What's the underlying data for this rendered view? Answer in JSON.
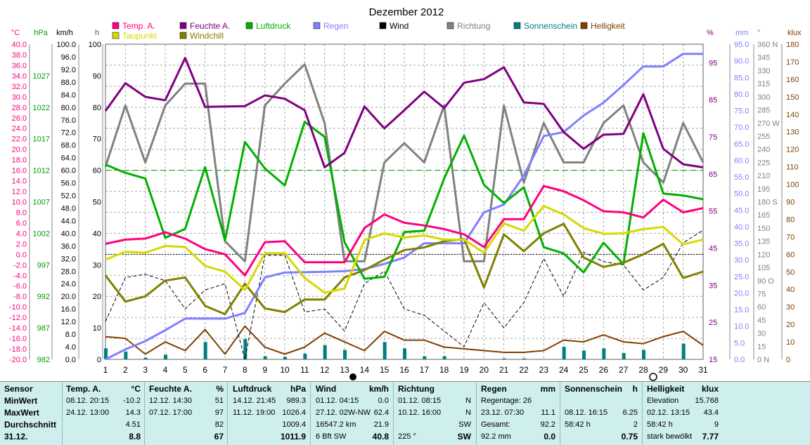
{
  "title": "Dezember 2012",
  "legend": [
    {
      "label": "Temp. A.",
      "color": "#ff0080"
    },
    {
      "label": "Taupunkt",
      "color": "#d8d800"
    },
    {
      "label": "Feuchte A.",
      "color": "#800080"
    },
    {
      "label": "Windchill",
      "color": "#808000"
    },
    {
      "label": "Luftdruck",
      "color": "#00b000"
    },
    {
      "label": "Regen",
      "color": "#8080ff"
    },
    {
      "label": "Wind",
      "color": "#000000"
    },
    {
      "label": "Richtung",
      "color": "#808080"
    },
    {
      "label": "Sonnenschein",
      "color": "#008080"
    },
    {
      "label": "Helligkeit",
      "color": "#804000"
    }
  ],
  "axes": {
    "temp": {
      "unit": "°C",
      "ticks": [
        "40.0",
        "38.0",
        "36.0",
        "34.0",
        "32.0",
        "30.0",
        "28.0",
        "26.0",
        "24.0",
        "22.0",
        "20.0",
        "18.0",
        "16.0",
        "14.0",
        "12.0",
        "10.0",
        "8.0",
        "6.0",
        "4.0",
        "2.0",
        "0.0",
        "-2.0",
        "-4.0",
        "-6.0",
        "-8.0",
        "-10.0",
        "-12.0",
        "-14.0",
        "-16.0",
        "-18.0",
        "-20.0"
      ]
    },
    "pressure": {
      "unit": "hPa",
      "ticks": [
        "1027",
        "1022",
        "1017",
        "1012",
        "1007",
        "1002",
        "997",
        "992",
        "987",
        "982"
      ]
    },
    "wind": {
      "unit": "km/h",
      "ticks": [
        "100.0",
        "96.0",
        "92.0",
        "88.0",
        "84.0",
        "80.0",
        "76.0",
        "72.0",
        "68.0",
        "64.0",
        "60.0",
        "56.0",
        "52.0",
        "48.0",
        "44.0",
        "40.0",
        "36.0",
        "32.0",
        "28.0",
        "24.0",
        "20.0",
        "16.0",
        "12.0",
        "8.0",
        "4.0",
        "0.0"
      ]
    },
    "sun": {
      "unit": "h",
      "ticks": [
        "100",
        "90",
        "80",
        "70",
        "60",
        "50",
        "40",
        "30",
        "20",
        "10",
        "0"
      ]
    },
    "humidity": {
      "unit": "%",
      "ticks": [
        "95",
        "85",
        "75",
        "65",
        "55",
        "45",
        "35",
        "25",
        "15"
      ]
    },
    "rain": {
      "unit": "mm",
      "ticks": [
        "95.0",
        "90.0",
        "85.0",
        "80.0",
        "75.0",
        "70.0",
        "65.0",
        "60.0",
        "55.0",
        "50.0",
        "45.0",
        "40.0",
        "35.0",
        "30.0",
        "25.0",
        "20.0",
        "15.0",
        "10.0",
        "5.0",
        "0.0"
      ]
    },
    "direction": {
      "unit": "°",
      "ticks": [
        "360 N",
        "345",
        "330",
        "315",
        "300",
        "285",
        "270 W",
        "255",
        "240",
        "225",
        "210",
        "195",
        "180 S",
        "165",
        "150",
        "135",
        "120",
        "105",
        "90 O",
        "75",
        "60",
        "45",
        "30",
        "15",
        "0 N"
      ]
    },
    "light": {
      "unit": "klux",
      "ticks": [
        "180",
        "170",
        "160",
        "150",
        "140",
        "130",
        "120",
        "110",
        "100",
        "90",
        "80",
        "70",
        "60",
        "50",
        "40",
        "30",
        "20",
        "10",
        "0"
      ]
    },
    "days": [
      "1",
      "2",
      "3",
      "4",
      "5",
      "6",
      "7",
      "8",
      "9",
      "10",
      "11",
      "12",
      "13",
      "14",
      "15",
      "16",
      "17",
      "18",
      "19",
      "20",
      "21",
      "22",
      "23",
      "24",
      "25",
      "26",
      "27",
      "28",
      "29",
      "30",
      "31"
    ]
  },
  "chart_data": {
    "type": "line",
    "title": "Dezember 2012",
    "x": [
      1,
      2,
      3,
      4,
      5,
      6,
      7,
      8,
      9,
      10,
      11,
      12,
      13,
      14,
      15,
      16,
      17,
      18,
      19,
      20,
      21,
      22,
      23,
      24,
      25,
      26,
      27,
      28,
      29,
      30,
      31
    ],
    "xlim": [
      1,
      31
    ],
    "series": [
      {
        "name": "Temp. A.",
        "axis": "temp",
        "ylim": [
          -20,
          40
        ],
        "color": "#ff0080",
        "values": [
          2,
          2.8,
          3,
          4.2,
          3,
          1,
          0,
          -4,
          2.3,
          2.5,
          -1.5,
          -1.5,
          -1.5,
          5,
          7.6,
          6,
          5.5,
          4.8,
          3.8,
          1.4,
          6.7,
          6.7,
          13,
          12,
          10.3,
          8.2,
          8,
          7,
          10.4,
          8,
          8.8
        ]
      },
      {
        "name": "Taupunkt",
        "axis": "temp",
        "ylim": [
          -20,
          40
        ],
        "color": "#d8d800",
        "values": [
          -1,
          0.5,
          0.3,
          1.6,
          1.4,
          -2.2,
          -3.3,
          -6.8,
          0.2,
          0.2,
          -4.5,
          -7.3,
          -6.5,
          2.7,
          4,
          3.2,
          3.6,
          2.8,
          2.8,
          0.3,
          5.9,
          4.5,
          9.2,
          7.6,
          5,
          3.9,
          4,
          4.8,
          5.2,
          1.9,
          2.8
        ]
      },
      {
        "name": "Windchill",
        "axis": "temp",
        "ylim": [
          -20,
          40
        ],
        "color": "#808000",
        "values": [
          -4,
          -9,
          -8,
          -5,
          -4.4,
          -9.8,
          -11.4,
          -5.6,
          -10.3,
          -11,
          -8.6,
          -8.6,
          -4.4,
          -3,
          -1,
          0.8,
          1.3,
          2.5,
          2.9,
          -6.3,
          3.8,
          0.6,
          4,
          5.8,
          -0.6,
          -2.4,
          -1.6,
          0,
          2,
          -4.5,
          -3.3
        ]
      },
      {
        "name": "Feuchte A.",
        "axis": "humidity",
        "ylim": [
          15,
          100
        ],
        "color": "#800080",
        "values": [
          82,
          89.5,
          85.8,
          84.9,
          96.3,
          83.1,
          83.2,
          83.3,
          86.2,
          85.3,
          82.2,
          66.8,
          70.7,
          83.2,
          77.3,
          82.2,
          87.2,
          82.8,
          89.6,
          90.6,
          93.8,
          84.3,
          83.9,
          76.3,
          71.8,
          75.6,
          75.8,
          86.5,
          71.8,
          67.6,
          66.8
        ]
      },
      {
        "name": "Luftdruck",
        "axis": "pressure",
        "ylim": [
          982,
          1032
        ],
        "color": "#00b000",
        "values": [
          1012.9,
          1011.6,
          1010.7,
          1001.3,
          1002.7,
          1012.5,
          1000.9,
          1016.5,
          1012.3,
          1009.6,
          1019.7,
          1017.3,
          1000.6,
          994.8,
          995.1,
          1002.2,
          1002.4,
          1010.7,
          1017.5,
          1009.7,
          1006.8,
          1009.3,
          999.8,
          998.8,
          995.8,
          1000.5,
          997.1,
          1017.9,
          1008.3,
          1008,
          1007.4
        ]
      },
      {
        "name": "Regen",
        "axis": "rain",
        "ylim": [
          0,
          95
        ],
        "color": "#8080ff",
        "values": [
          0,
          3,
          5.5,
          8.8,
          12.3,
          12.3,
          12.3,
          14,
          24.7,
          26.2,
          26.3,
          26.4,
          26.6,
          27.2,
          28.8,
          30.7,
          35,
          35,
          35,
          44.3,
          46.7,
          55.4,
          67.3,
          68.5,
          73.5,
          77.4,
          82.7,
          88.3,
          88.3,
          92.1,
          92.1
        ]
      },
      {
        "name": "Wind",
        "axis": "wind",
        "ylim": [
          0,
          100
        ],
        "color": "#000000",
        "values": [
          12,
          26,
          27,
          25,
          16,
          22,
          24,
          0,
          33,
          33,
          15,
          16,
          9,
          24,
          28,
          16,
          14,
          9,
          4,
          18,
          10,
          18,
          32,
          20,
          34,
          31,
          30,
          22,
          26,
          37,
          41
        ]
      },
      {
        "name": "Richtung",
        "axis": "direction",
        "ylim": [
          0,
          360
        ],
        "color": "#808080",
        "values": [
          220,
          290,
          225,
          290,
          315,
          315,
          135,
          112,
          290,
          315,
          337,
          270,
          112,
          112,
          225,
          247,
          225,
          290,
          112,
          112,
          290,
          202,
          270,
          225,
          225,
          270,
          290,
          225,
          202,
          270,
          225
        ]
      },
      {
        "name": "Sonnenschein",
        "axis": "sun",
        "type": "bar",
        "ylim": [
          0,
          100
        ],
        "color": "#008080",
        "values": [
          3.5,
          2.5,
          0.5,
          1.5,
          0,
          5.5,
          0,
          6.5,
          1,
          0.8,
          1.8,
          4.5,
          3,
          0,
          5.5,
          3.5,
          1,
          1,
          0,
          0,
          0.3,
          0.3,
          0,
          4,
          2.8,
          3.5,
          2,
          3,
          0,
          5,
          0
        ]
      },
      {
        "name": "Helligkeit",
        "axis": "light",
        "ylim": [
          0,
          180
        ],
        "color": "#804000",
        "values": [
          13,
          12,
          3,
          10,
          5,
          17,
          3,
          19,
          7,
          3,
          7,
          15,
          10,
          5,
          16,
          11,
          11,
          7,
          6,
          5,
          4,
          4,
          5,
          11,
          10,
          14,
          10,
          9,
          13,
          16,
          8
        ]
      }
    ],
    "reference_lines": [
      {
        "axis": "temp",
        "value": 0,
        "color": "#000000",
        "style": "dotted"
      },
      {
        "axis": "temp",
        "value": 16,
        "color": "#00a000",
        "style": "dashed"
      }
    ],
    "grid": true,
    "legend_position": "top"
  },
  "summary": {
    "sensor": {
      "title": "Sensor",
      "rows": [
        "MinWert",
        "MaxWert",
        "Durchschnitt",
        "31.12."
      ]
    },
    "temp": {
      "title": "Temp. A.",
      "unit": "°C",
      "rows": [
        [
          "08.12.  20:15",
          "-10.2"
        ],
        [
          "24.12.  13:00",
          "14.3"
        ],
        [
          "",
          "4.51"
        ],
        [
          "",
          "8.8"
        ]
      ]
    },
    "feuchte": {
      "title": "Feuchte A.",
      "unit": "%",
      "rows": [
        [
          "12.12.  14:30",
          "51"
        ],
        [
          "07.12.  17:00",
          "97"
        ],
        [
          "",
          "82"
        ],
        [
          "",
          "67"
        ]
      ]
    },
    "luftdruck": {
      "title": "Luftdruck",
      "unit": "hPa",
      "rows": [
        [
          "14.12.  21:45",
          "989.3"
        ],
        [
          "11.12.  19:00",
          "1026.4"
        ],
        [
          "",
          "1009.4"
        ],
        [
          "",
          "1011.9"
        ]
      ]
    },
    "wind": {
      "title": "Wind",
      "unit": "km/h",
      "rows": [
        [
          "01.12.  04:15",
          "0.0"
        ],
        [
          "27.12.  02W-NW",
          "62.4"
        ],
        [
          "16547.2 km",
          "21.9"
        ],
        [
          "6 Bft SW",
          "40.8"
        ]
      ]
    },
    "richtung": {
      "title": "Richtung",
      "rows": [
        [
          "01.12.  08:15",
          "N"
        ],
        [
          "10.12.  16:00",
          "N"
        ],
        [
          "",
          "SW"
        ],
        [
          "225 °",
          "SW"
        ]
      ]
    },
    "regen": {
      "title": "Regen",
      "unit": "mm",
      "rows": [
        [
          "Regentage: 26",
          ""
        ],
        [
          "23.12.  07:30",
          "11.1"
        ],
        [
          "Gesamt:",
          "92.2"
        ],
        [
          "92.2 mm",
          "0.0"
        ]
      ]
    },
    "sonne": {
      "title": "Sonnenschein",
      "unit": "h",
      "rows": [
        [
          "",
          ""
        ],
        [
          "08.12.  16:15",
          "6.25"
        ],
        [
          "58:42 h",
          "2"
        ],
        [
          "",
          "0.75"
        ]
      ]
    },
    "hell": {
      "title": "Helligkeit",
      "unit": "klux",
      "rows": [
        [
          "Elevation",
          "15.768"
        ],
        [
          "02.12.  13:15",
          "43.4"
        ],
        [
          "58:42 h",
          "9"
        ],
        [
          "stark bewölkt",
          "7.77"
        ]
      ]
    }
  }
}
